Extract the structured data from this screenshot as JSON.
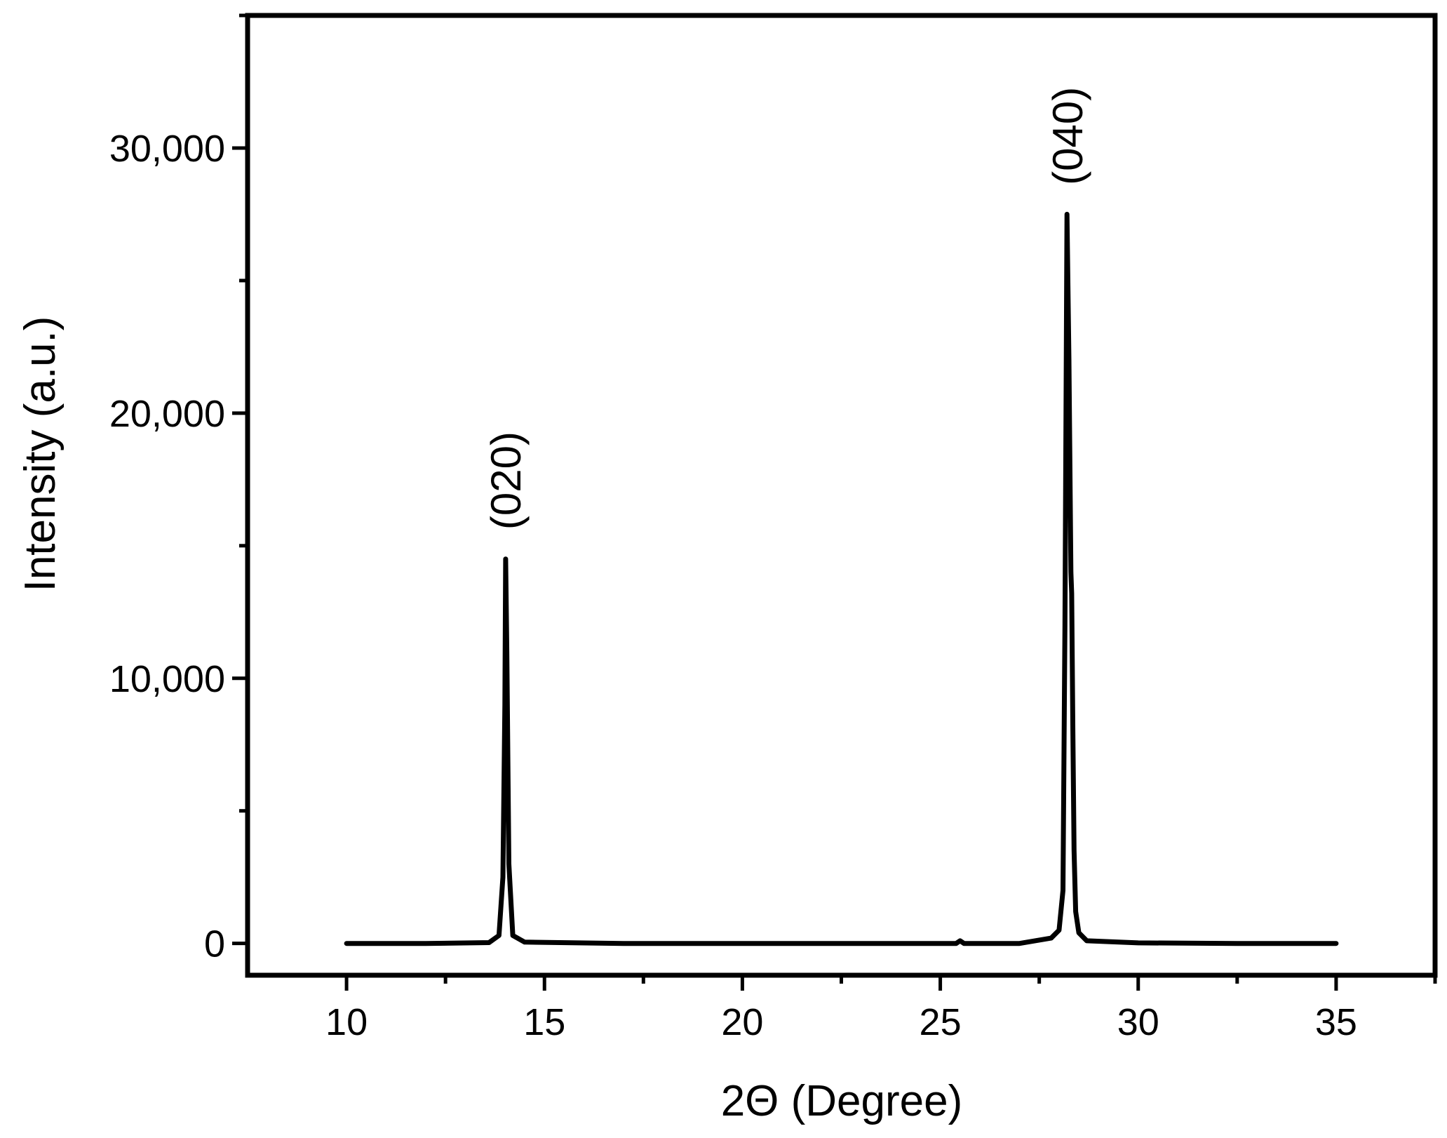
{
  "chart_data": {
    "type": "line",
    "title": "",
    "xlabel": "2Θ (Degree)",
    "ylabel": "Intensity (a.u.)",
    "xlim": [
      7.5,
      37.5
    ],
    "ylim": [
      -1200,
      35000
    ],
    "x_ticks": [
      10,
      15,
      20,
      25,
      30,
      35
    ],
    "x_tick_labels": [
      "10",
      "15",
      "20",
      "25",
      "30",
      "35"
    ],
    "y_ticks": [
      0,
      10000,
      20000,
      30000
    ],
    "y_tick_labels": [
      "0",
      "10,000",
      "20,000",
      "30,000"
    ],
    "grid": false,
    "legend": "none",
    "line_color": "#000000",
    "series": [
      {
        "x": [
          10.0,
          12.0,
          13.6,
          13.85,
          13.95,
          14.0,
          14.02,
          14.05,
          14.1,
          14.2,
          14.5,
          17.0,
          20.0,
          25.4,
          25.5,
          25.6,
          27.0,
          27.8,
          28.0,
          28.1,
          28.15,
          28.2,
          28.25,
          28.3,
          28.32,
          28.35,
          28.38,
          28.42,
          28.5,
          28.7,
          30.0,
          32.5,
          35.0
        ],
        "y": [
          0,
          0,
          30,
          300,
          2500,
          9000,
          14500,
          11000,
          3000,
          300,
          50,
          0,
          0,
          0,
          100,
          0,
          0,
          200,
          500,
          2000,
          12000,
          27500,
          22000,
          14000,
          13200,
          8000,
          3500,
          1200,
          400,
          100,
          20,
          0,
          0
        ]
      }
    ],
    "annotations": [
      {
        "text": "(020)",
        "x": 14.0,
        "y": 15600
      },
      {
        "text": "(040)",
        "x": 28.2,
        "y": 28600
      }
    ]
  }
}
